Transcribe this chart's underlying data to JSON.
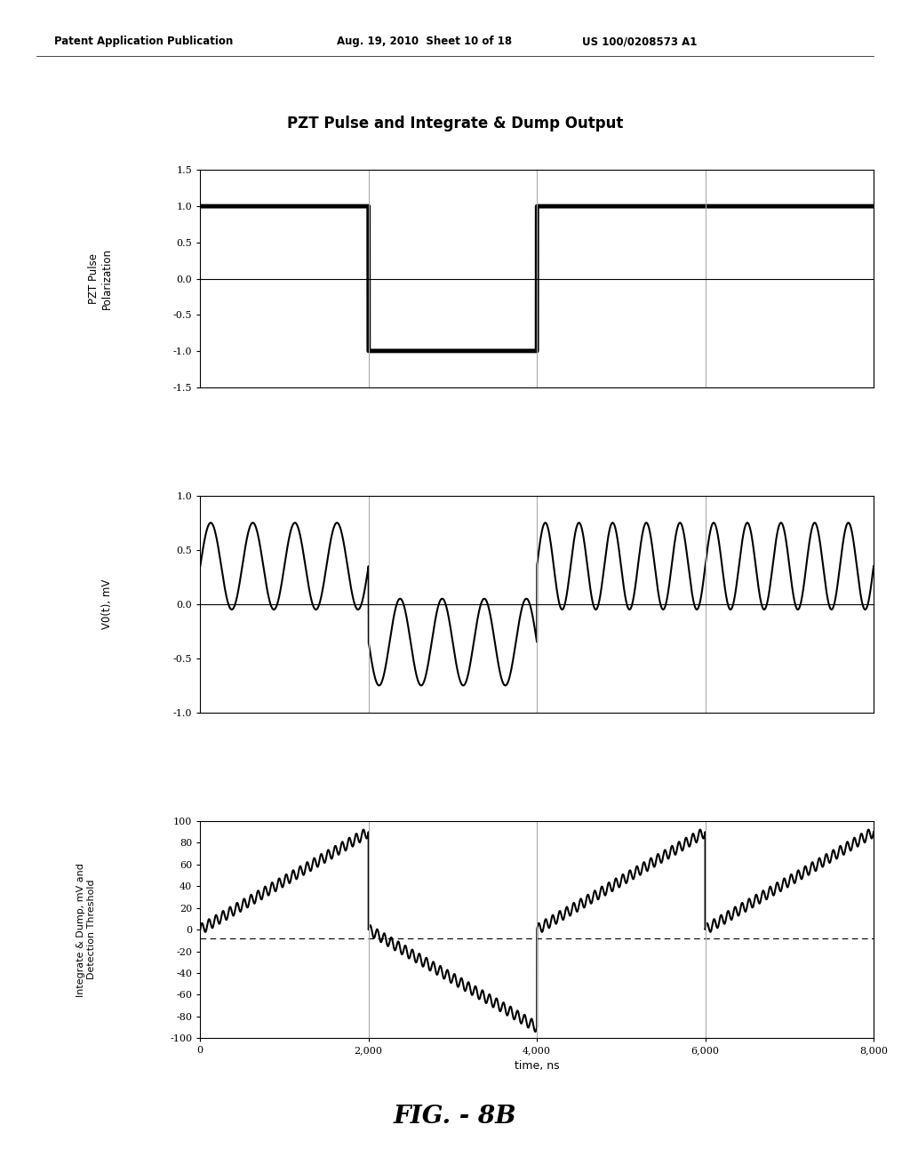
{
  "title": "PZT Pulse and Integrate & Dump Output",
  "header_left": "Patent Application Publication",
  "header_mid": "Aug. 19, 2010  Sheet 10 of 18",
  "header_right": "US 100/0208573 A1",
  "fig_label": "FIG. - 8B",
  "xlim": [
    0,
    8000
  ],
  "xticks": [
    0,
    2000,
    4000,
    6000,
    8000
  ],
  "xlabel": "time, ns",
  "plot1": {
    "ylabel": "PZT Pulse\nPolarization",
    "ylim": [
      -1.5,
      1.5
    ],
    "yticks": [
      -1.5,
      -1.0,
      -0.5,
      0.0,
      0.5,
      1.0,
      1.5
    ]
  },
  "plot2": {
    "ylabel": "V0(t), mV",
    "ylim": [
      -1.0,
      1.0
    ],
    "yticks": [
      -1.0,
      -0.5,
      0.0,
      0.5,
      1.0
    ]
  },
  "plot3": {
    "ylabel": "Integrate & Dump, mV and\nDetection Threshold",
    "ylim": [
      -100,
      100
    ],
    "yticks": [
      -100,
      -80,
      -60,
      -40,
      -20,
      0,
      20,
      40,
      60,
      80,
      100
    ]
  },
  "vline_positions": [
    2000,
    4000,
    6000,
    8000
  ],
  "bg_color": "#ffffff",
  "line_color": "#000000",
  "vline_color": "#aaaaaa",
  "threshold_y": -8
}
